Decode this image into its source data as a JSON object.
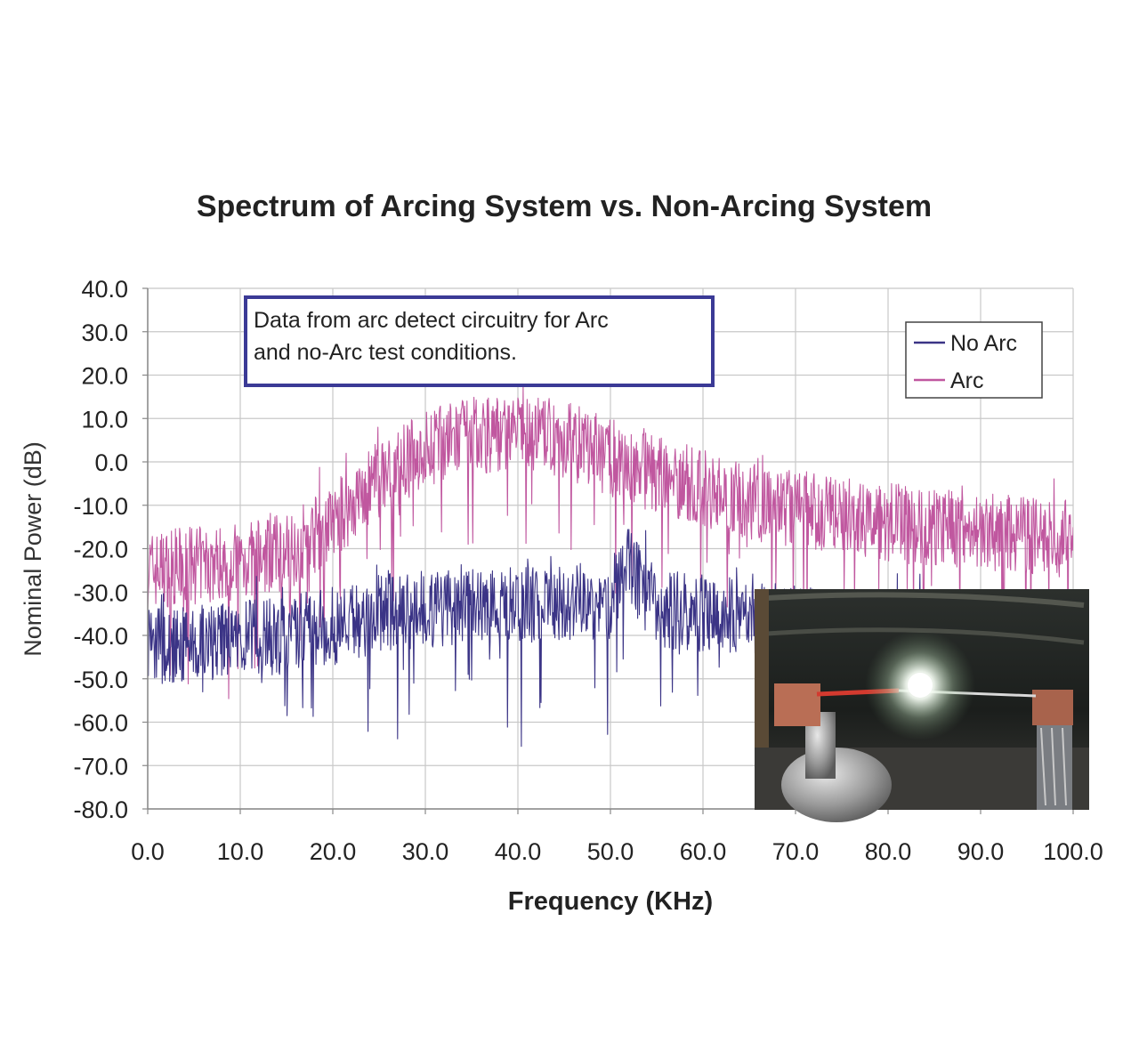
{
  "chart_data": {
    "type": "line",
    "title": "Spectrum of Arcing System vs. Non-Arcing System",
    "xlabel": "Frequency (KHz)",
    "ylabel": "Nominal Power (dB)",
    "xlim": [
      0,
      100
    ],
    "ylim": [
      -80,
      40
    ],
    "x_ticks": [
      "0.0",
      "10.0",
      "20.0",
      "30.0",
      "40.0",
      "50.0",
      "60.0",
      "70.0",
      "80.0",
      "90.0",
      "100.0"
    ],
    "y_ticks": [
      "40.0",
      "30.0",
      "20.0",
      "10.0",
      "0.0",
      "-10.0",
      "-20.0",
      "-30.0",
      "-40.0",
      "-50.0",
      "-60.0",
      "-70.0",
      "-80.0"
    ],
    "grid": true,
    "legend_position": "top-right",
    "annotation": {
      "line1": "Data from arc detect circuitry for Arc",
      "line2": "and no-Arc test conditions."
    },
    "series": [
      {
        "name": "No Arc",
        "color": "#3b3486",
        "x": [
          0,
          5,
          10,
          15,
          20,
          25,
          30,
          35,
          40,
          45,
          50,
          51.5,
          55,
          60,
          65,
          70,
          80,
          90,
          100
        ],
        "y": [
          -42,
          -41,
          -40,
          -39,
          -37,
          -34,
          -33,
          -32,
          -32,
          -31,
          -32,
          -22,
          -33,
          -34,
          -35,
          -36,
          -38,
          -40,
          -41
        ]
      },
      {
        "name": "Arc",
        "color": "#c0579f",
        "x": [
          0,
          5,
          10,
          15,
          20,
          25,
          30,
          35,
          40,
          45,
          50,
          55,
          60,
          65,
          70,
          80,
          90,
          100
        ],
        "y": [
          -24,
          -23,
          -22,
          -20,
          -13,
          -3,
          4,
          7,
          8,
          6,
          2,
          -2,
          -5,
          -8,
          -10,
          -13,
          -15,
          -17
        ]
      }
    ]
  }
}
